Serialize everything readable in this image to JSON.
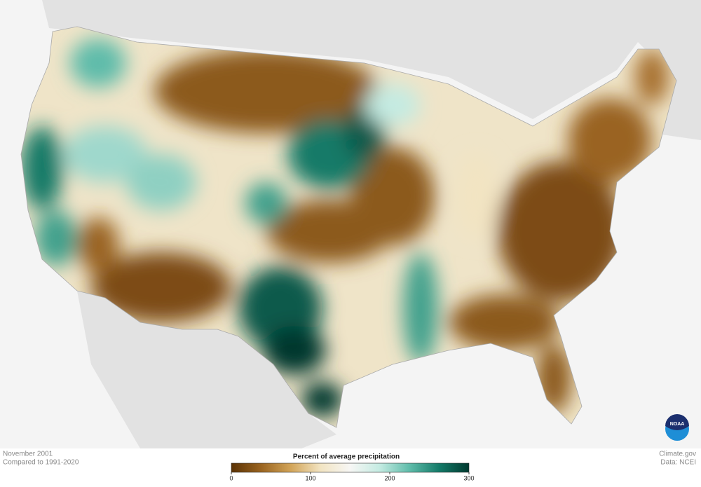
{
  "footer": {
    "left_line1": "November 2001",
    "left_line2": "Compared to 1991-2020",
    "right_line1": "Climate.gov",
    "right_line2": "Data: NCEI"
  },
  "logo": {
    "text": "NOAA"
  },
  "legend": {
    "title": "Percent of average precipitation",
    "lim": [
      0,
      300
    ],
    "ticks": [
      0,
      100,
      200,
      300
    ],
    "colors": [
      "#5a3204",
      "#9a6420",
      "#d2a458",
      "#f2e4c2",
      "#f7f7f5",
      "#c4ebe2",
      "#5fbcaa",
      "#137a68",
      "#00392f"
    ]
  }
}
